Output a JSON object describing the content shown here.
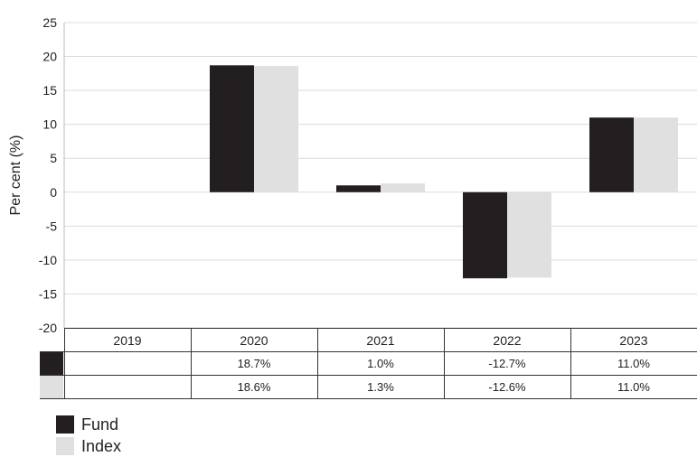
{
  "chart_data": {
    "type": "bar",
    "categories": [
      "2019",
      "2020",
      "2021",
      "2022",
      "2023"
    ],
    "series": [
      {
        "name": "Fund",
        "color": "#231f20",
        "values": [
          null,
          18.7,
          1.0,
          -12.7,
          11.0
        ]
      },
      {
        "name": "Index",
        "color": "#e0e0e0",
        "values": [
          null,
          18.6,
          1.3,
          -12.6,
          11.0
        ]
      }
    ],
    "ylabel": "Per cent (%)",
    "ylim": [
      -20,
      25
    ],
    "yticks": [
      25,
      20,
      15,
      10,
      5,
      0,
      -5,
      -10,
      -15,
      -20
    ],
    "grid": true,
    "legend": "bottom-left",
    "table": {
      "rows": [
        [
          "",
          "18.7%",
          "1.0%",
          "-12.7%",
          "11.0%"
        ],
        [
          "",
          "18.6%",
          "1.3%",
          "-12.6%",
          "11.0%"
        ]
      ]
    }
  }
}
